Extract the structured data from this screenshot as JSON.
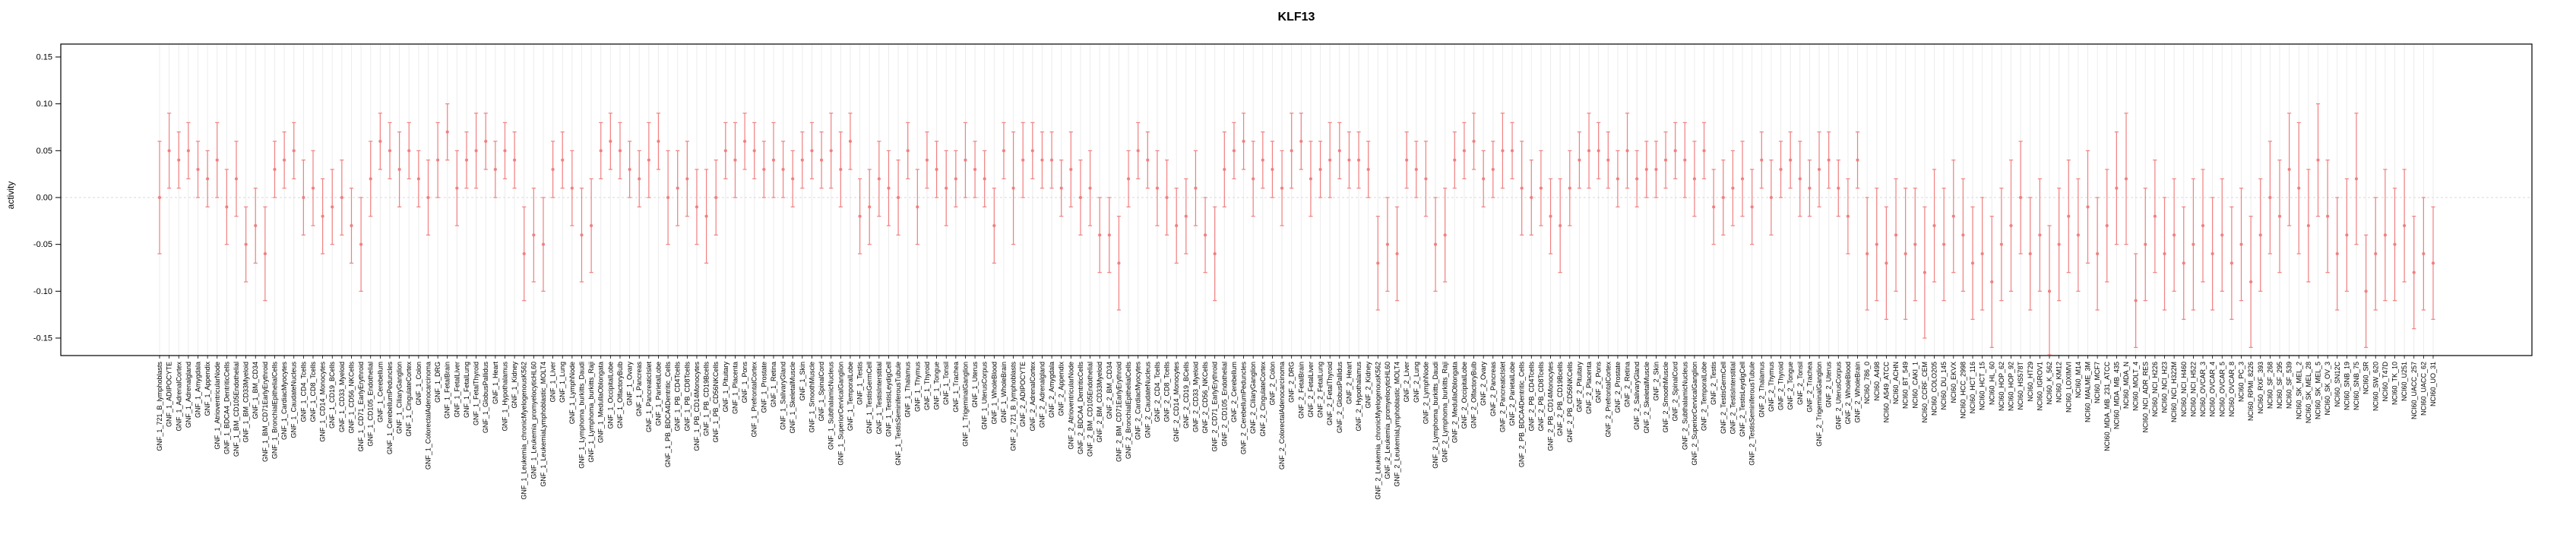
{
  "chart_data": {
    "type": "scatter",
    "title": "KLF13",
    "xlabel": "",
    "ylabel": "activity",
    "ylim": [
      -0.15,
      0.15
    ],
    "yticks": [
      -0.15,
      -0.1,
      -0.05,
      0.0,
      0.05,
      0.1,
      0.15
    ],
    "grid": "vertical-per-category",
    "legend": "none",
    "error_bars": true,
    "point_color": "#f08080",
    "grid_color": "#ececec",
    "zero_line_color": "#d9d9d9",
    "axis_color": "#000000",
    "categories": [
      "GNF_1_721_B_lymphoblasts",
      "GNF_1_ADIPOCYTE",
      "GNF_1_AdrenalCortex",
      "GNF_1_Adrenalgland",
      "GNF_1_Amygdala",
      "GNF_1_Appendix",
      "GNF_1_AtrioventricularNode",
      "GNF_1_BDCA4_DentriticCells",
      "GNF_1_BM_CD105Endothelial",
      "GNF_1_BM_CD33Myeloid",
      "GNF_1_BM_CD34",
      "GNF_1_BM_CD71EarlyErythroid",
      "GNF_1_BronchialEpithelialCells",
      "GNF_1_CardiacMyocytes",
      "GNF_1_CaudateNucleus",
      "GNF_1_CD4_Tcells",
      "GNF_1_CD8_Tcells",
      "GNF_1_CD14_Monocytes",
      "GNF_1_CD19_BCells",
      "GNF_1_CD33_Myeloid",
      "GNF_1_CD56_NKCells",
      "GNF_1_CD71_EarlyErythroid",
      "GNF_1_CD105_Endothelial",
      "GNF_1_Cerebellum",
      "GNF_1_CerebellumPeduncles",
      "GNF_1_CiliaryGanglion",
      "GNF_1_CingulateCortex",
      "GNF_1_Colon",
      "GNF_1_ColorectalAdenocarcinoma",
      "GNF_1_DRG",
      "GNF_1_FetalBrain",
      "GNF_1_FetalLiver",
      "GNF_1_FetalLung",
      "GNF_1_FetalThyroid",
      "GNF_1_GlobusPallidus",
      "GNF_1_Heart",
      "GNF_1_Hypothalamus",
      "GNF_1_Kidney",
      "GNF_1_Leukemia_chronicMyelogenousK562",
      "GNF_1_Leukemia_promyelocyticHL60",
      "GNF_1_LeukemiaLymphoblastic_MOLT4",
      "GNF_1_Liver",
      "GNF_1_Lung",
      "GNF_1_LymphNode",
      "GNF_1_Lymphoma_burkitts_Daudi",
      "GNF_1_Lymphoma_burkitts_Raji",
      "GNF_1_MedullaOblongata",
      "GNF_1_OccipitalLobe",
      "GNF_1_OlfactoryBulb",
      "GNF_1_Ovary",
      "GNF_1_Pancreas",
      "GNF_1_PancreaticIslet",
      "GNF_1_ParietalLobe",
      "GNF_1_PB_BDCA4Dentritic_Cells",
      "GNF_1_PB_CD4Tcells",
      "GNF_1_PB_CD8Tcells",
      "GNF_1_PB_CD14Monocytes",
      "GNF_1_PB_CD19Bcells",
      "GNF_1_PB_CD56NKCells",
      "GNF_1_Pituitary",
      "GNF_1_Placenta",
      "GNF_1_Pons",
      "GNF_1_PrefrontalCortex",
      "GNF_1_Prostate",
      "GNF_1_Retina",
      "GNF_1_SalivaryGland",
      "GNF_1_SkeletalMuscle",
      "GNF_1_Skin",
      "GNF_1_SmoothMuscle",
      "GNF_1_SpinalCord",
      "GNF_1_SubthalamicNucleus",
      "GNF_1_SuperiorCervicalGanglion",
      "GNF_1_TemporalLobe",
      "GNF_1_Testis",
      "GNF_1_TestisGermCell",
      "GNF_1_TestisInterstitial",
      "GNF_1_TestisLeydigCell",
      "GNF_1_TestisSeminiferousTubule",
      "GNF_1_Thalamus",
      "GNF_1_Thymus",
      "GNF_1_Thyroid",
      "GNF_1_Tongue",
      "GNF_1_Tonsil",
      "GNF_1_Trachea",
      "GNF_1_TrigeminalGanglion",
      "GNF_1_Uterus",
      "GNF_1_UterusCorpus",
      "GNF_1_WholeBlood",
      "GNF_1_WholeBrain",
      "GNF_2_721_B_lymphoblasts",
      "GNF_2_ADIPOCYTE",
      "GNF_2_AdrenalCortex",
      "GNF_2_Adrenalgland",
      "GNF_2_Amygdala",
      "GNF_2_Appendix",
      "GNF_2_AtrioventricularNode",
      "GNF_2_BDCA4_DentriticCells",
      "GNF_2_BM_CD105Endothelial",
      "GNF_2_BM_CD33Myeloid",
      "GNF_2_BM_CD34",
      "GNF_2_BM_CD71EarlyErythroid",
      "GNF_2_BronchialEpithelialCells",
      "GNF_2_CardiacMyocytes",
      "GNF_2_CaudateNucleus",
      "GNF_2_CD4_Tcells",
      "GNF_2_CD8_Tcells",
      "GNF_2_CD14_Monocytes",
      "GNF_2_CD19_BCells",
      "GNF_2_CD33_Myeloid",
      "GNF_2_CD56_NKCells",
      "GNF_2_CD71_EarlyErythroid",
      "GNF_2_CD105_Endothelial",
      "GNF_2_Cerebellum",
      "GNF_2_CerebellumPeduncles",
      "GNF_2_CiliaryGanglion",
      "GNF_2_CingulateCortex",
      "GNF_2_Colon",
      "GNF_2_ColorectalAdenocarcinoma",
      "GNF_2_DRG",
      "GNF_2_FetalBrain",
      "GNF_2_FetalLiver",
      "GNF_2_FetalLung",
      "GNF_2_FetalThyroid",
      "GNF_2_GlobusPallidus",
      "GNF_2_Heart",
      "GNF_2_Hypothalamus",
      "GNF_2_Kidney",
      "GNF_2_Leukemia_chronicMyelogenousK562",
      "GNF_2_Leukemia_promyelocyticHL60",
      "GNF_2_LeukemiaLymphoblastic_MOLT4",
      "GNF_2_Liver",
      "GNF_2_Lung",
      "GNF_2_LymphNode",
      "GNF_2_Lymphoma_burkitts_Daudi",
      "GNF_2_Lymphoma_burkitts_Raji",
      "GNF_2_MedullaOblongata",
      "GNF_2_OccipitalLobe",
      "GNF_2_OlfactoryBulb",
      "GNF_2_Ovary",
      "GNF_2_Pancreas",
      "GNF_2_PancreaticIslet",
      "GNF_2_ParietalLobe",
      "GNF_2_PB_BDCA4Dentritic_Cells",
      "GNF_2_PB_CD4Tcells",
      "GNF_2_PB_CD8Tcells",
      "GNF_2_PB_CD14Monocytes",
      "GNF_2_PB_CD19Bcells",
      "GNF_2_PB_CD56NKCells",
      "GNF_2_Pituitary",
      "GNF_2_Placenta",
      "GNF_2_Pons",
      "GNF_2_PrefrontalCortex",
      "GNF_2_Prostate",
      "GNF_2_Retina",
      "GNF_2_SalivaryGland",
      "GNF_2_SkeletalMuscle",
      "GNF_2_Skin",
      "GNF_2_SmoothMuscle",
      "GNF_2_SpinalCord",
      "GNF_2_SubthalamicNucleus",
      "GNF_2_SuperiorCervicalGanglion",
      "GNF_2_TemporalLobe",
      "GNF_2_Testis",
      "GNF_2_TestisGermCell",
      "GNF_2_TestisInterstitial",
      "GNF_2_TestisLeydigCell",
      "GNF_2_TestisSeminiferousTubule",
      "GNF_2_Thalamus",
      "GNF_2_Thymus",
      "GNF_2_Thyroid",
      "GNF_2_Tongue",
      "GNF_2_Tonsil",
      "GNF_2_Trachea",
      "GNF_2_TrigeminalGanglion",
      "GNF_2_Uterus",
      "GNF_2_UterusCorpus",
      "GNF_2_WholeBlood",
      "GNF_2_WholeBrain",
      "NCI60_786_0",
      "NCI60_A498",
      "NCI60_A549_ATCC",
      "NCI60_ACHN",
      "NCI60_BT_549",
      "NCI60_CAKI_1",
      "NCI60_CCRF_CEM",
      "NCI60_COLO205",
      "NCI60_DU_145",
      "NCI60_EKVX",
      "NCI60_HCC_2998",
      "NCI60_HCT_116",
      "NCI60_HCT_15",
      "NCI60_HL_60",
      "NCI60_HOP_62",
      "NCI60_HOP_92",
      "NCI60_HS578T",
      "NCI60_HT29",
      "NCI60_IGROV1",
      "NCI60_K_562",
      "NCI60_KM12",
      "NCI60_LOXIMVI",
      "NCI60_M14",
      "NCI60_MALME_3M",
      "NCI60_MCF7",
      "NCI60_MDA_MB_231_ATCC",
      "NCI60_MDA_MB_435",
      "NCI60_MDA_N",
      "NCI60_MOLT_4",
      "NCI60_NCI_ADR_RES",
      "NCI60_NCI_H226",
      "NCI60_NCI_H23",
      "NCI60_NCI_H322M",
      "NCI60_NCI_H460",
      "NCI60_NCI_H522",
      "NCI60_OVCAR_3",
      "NCI60_OVCAR_4",
      "NCI60_OVCAR_5",
      "NCI60_OVCAR_8",
      "NCI60_PC_3",
      "NCI60_RPMI_8226",
      "NCI60_RXF_393",
      "NCI60_SF_268",
      "NCI60_SF_295",
      "NCI60_SF_539",
      "NCI60_SK_MEL_2",
      "NCI60_SK_MEL_28",
      "NCI60_SK_MEL_5",
      "NCI60_SK_OV_3",
      "NCI60_SN12C",
      "NCI60_SNB_19",
      "NCI60_SNB_75",
      "NCI60_SR",
      "NCI60_SW_620",
      "NCI60_T47D",
      "NCI60_TK_10",
      "NCI60_U251",
      "NCI60_UACC_257",
      "NCI60_UACC_62",
      "NCI60_UO_31"
    ],
    "values": [
      0.0,
      0.05,
      0.04,
      0.05,
      0.03,
      0.02,
      0.04,
      -0.01,
      0.02,
      -0.05,
      -0.03,
      -0.06,
      0.03,
      0.04,
      0.05,
      0.0,
      0.01,
      -0.02,
      -0.01,
      0.0,
      -0.03,
      -0.05,
      0.02,
      0.06,
      0.05,
      0.03,
      0.05,
      0.02,
      0.0,
      0.04,
      0.07,
      0.01,
      0.04,
      0.05,
      0.06,
      0.03,
      0.05,
      0.04,
      -0.06,
      -0.04,
      -0.05,
      0.03,
      0.04,
      0.01,
      -0.04,
      -0.03,
      0.05,
      0.06,
      0.05,
      0.03,
      0.02,
      0.04,
      0.06,
      0.0,
      0.01,
      0.02,
      -0.01,
      -0.02,
      0.0,
      0.05,
      0.04,
      0.06,
      0.05,
      0.03,
      0.04,
      0.03,
      0.02,
      0.04,
      0.05,
      0.04,
      0.05,
      0.03,
      0.06,
      -0.02,
      -0.01,
      0.02,
      0.01,
      0.0,
      0.05,
      -0.01,
      0.04,
      0.03,
      0.01,
      0.02,
      0.04,
      0.03,
      0.02,
      -0.03,
      0.05,
      0.01,
      0.04,
      0.05,
      0.04,
      0.04,
      0.01,
      0.03,
      0.0,
      0.01,
      -0.04,
      -0.04,
      -0.07,
      0.02,
      0.05,
      0.04,
      0.01,
      0.0,
      -0.03,
      -0.02,
      0.01,
      -0.04,
      -0.06,
      0.03,
      0.05,
      0.06,
      0.02,
      0.04,
      0.03,
      0.01,
      0.05,
      0.06,
      0.02,
      0.03,
      0.04,
      0.05,
      0.04,
      0.04,
      0.03,
      -0.07,
      -0.05,
      -0.06,
      0.04,
      0.03,
      0.02,
      -0.05,
      -0.04,
      0.04,
      0.05,
      0.06,
      0.02,
      0.03,
      0.05,
      0.05,
      0.01,
      0.0,
      0.01,
      -0.02,
      -0.03,
      0.01,
      0.04,
      0.05,
      0.05,
      0.04,
      0.02,
      0.05,
      0.02,
      0.03,
      0.03,
      0.04,
      0.05,
      0.04,
      0.02,
      0.05,
      -0.01,
      0.0,
      0.01,
      0.02,
      -0.01,
      0.04,
      0.0,
      0.03,
      0.04,
      0.02,
      0.01,
      0.03,
      0.04,
      0.01,
      -0.02,
      0.04,
      -0.06,
      -0.05,
      -0.07,
      -0.04,
      -0.06,
      -0.05,
      -0.08,
      -0.03,
      -0.05,
      -0.02,
      -0.04,
      -0.07,
      -0.06,
      -0.09,
      -0.05,
      -0.03,
      0.0,
      -0.06,
      -0.04,
      -0.1,
      -0.05,
      -0.02,
      -0.04,
      -0.01,
      -0.06,
      -0.03,
      0.01,
      0.02,
      -0.11,
      -0.05,
      -0.02,
      -0.06,
      -0.04,
      -0.07,
      -0.05,
      -0.03,
      -0.06,
      -0.04,
      -0.07,
      -0.05,
      -0.09,
      -0.04,
      0.0,
      -0.02,
      0.03,
      0.01,
      -0.03,
      0.04,
      -0.02,
      -0.06,
      -0.04,
      0.02,
      -0.1,
      -0.06,
      -0.04,
      -0.05,
      -0.03,
      -0.08,
      -0.06,
      -0.07
    ],
    "errors": [
      0.06,
      0.04,
      0.03,
      0.03,
      0.03,
      0.03,
      0.04,
      0.04,
      0.04,
      0.04,
      0.04,
      0.05,
      0.03,
      0.03,
      0.03,
      0.04,
      0.04,
      0.04,
      0.04,
      0.04,
      0.04,
      0.05,
      0.04,
      0.03,
      0.03,
      0.04,
      0.03,
      0.03,
      0.04,
      0.04,
      0.03,
      0.04,
      0.03,
      0.04,
      0.03,
      0.03,
      0.03,
      0.03,
      0.05,
      0.05,
      0.05,
      0.03,
      0.03,
      0.04,
      0.05,
      0.05,
      0.03,
      0.03,
      0.03,
      0.03,
      0.03,
      0.04,
      0.03,
      0.05,
      0.04,
      0.04,
      0.04,
      0.05,
      0.04,
      0.03,
      0.04,
      0.03,
      0.03,
      0.03,
      0.04,
      0.03,
      0.03,
      0.03,
      0.03,
      0.03,
      0.04,
      0.04,
      0.03,
      0.04,
      0.04,
      0.04,
      0.04,
      0.04,
      0.03,
      0.04,
      0.03,
      0.03,
      0.04,
      0.03,
      0.04,
      0.03,
      0.03,
      0.04,
      0.03,
      0.06,
      0.04,
      0.03,
      0.03,
      0.03,
      0.03,
      0.04,
      0.04,
      0.04,
      0.04,
      0.04,
      0.05,
      0.03,
      0.03,
      0.03,
      0.04,
      0.04,
      0.04,
      0.04,
      0.04,
      0.04,
      0.05,
      0.04,
      0.03,
      0.03,
      0.04,
      0.03,
      0.03,
      0.04,
      0.04,
      0.03,
      0.04,
      0.03,
      0.04,
      0.03,
      0.03,
      0.03,
      0.03,
      0.05,
      0.05,
      0.05,
      0.03,
      0.03,
      0.04,
      0.05,
      0.05,
      0.03,
      0.03,
      0.03,
      0.03,
      0.03,
      0.04,
      0.03,
      0.05,
      0.04,
      0.04,
      0.04,
      0.05,
      0.04,
      0.03,
      0.04,
      0.03,
      0.03,
      0.03,
      0.04,
      0.03,
      0.03,
      0.03,
      0.03,
      0.03,
      0.04,
      0.04,
      0.03,
      0.04,
      0.04,
      0.04,
      0.04,
      0.04,
      0.03,
      0.04,
      0.03,
      0.03,
      0.04,
      0.03,
      0.04,
      0.03,
      0.03,
      0.04,
      0.03,
      0.06,
      0.06,
      0.06,
      0.06,
      0.07,
      0.06,
      0.07,
      0.06,
      0.06,
      0.06,
      0.06,
      0.06,
      0.06,
      0.07,
      0.06,
      0.07,
      0.06,
      0.06,
      0.06,
      0.07,
      0.06,
      0.06,
      0.06,
      0.06,
      0.06,
      0.06,
      0.06,
      0.07,
      0.05,
      0.06,
      0.06,
      0.06,
      0.06,
      0.06,
      0.07,
      0.06,
      0.06,
      0.06,
      0.06,
      0.06,
      0.07,
      0.06,
      0.06,
      0.06,
      0.06,
      0.07,
      0.06,
      0.06,
      0.06,
      0.06,
      0.06,
      0.07,
      0.06,
      0.06,
      0.07,
      0.06,
      0.06,
      0.06,
      0.06,
      0.06
    ]
  }
}
